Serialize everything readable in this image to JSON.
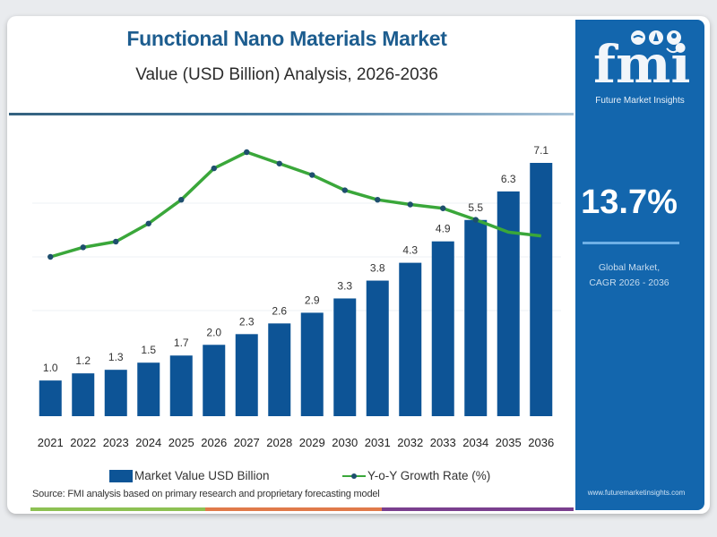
{
  "header": {
    "title": "Functional Nano Materials Market",
    "subtitle": "Value (USD Billion) Analysis, 2026-2036"
  },
  "sidebar": {
    "logo_text": "fmi",
    "logo_subtitle": "Future Market Insights",
    "cagr_value": "13.7%",
    "cagr_label_line1": "Global Market,",
    "cagr_label_line2": "CAGR 2026 - 2036",
    "website": "www.futuremarketinsights.com"
  },
  "legend": {
    "bar_label": "Market Value USD Billion",
    "line_label": "Y-o-Y Growth Rate (%)"
  },
  "source": "Source: FMI analysis based on primary research and proprietary forecasting model",
  "colors": {
    "brand_blue": "#1366ad",
    "bar": "#0d5496",
    "line": "#3aa73a",
    "marker": "#1e4f6e",
    "title": "#1d5d8f",
    "footer_segments": [
      "#8dc153",
      "#e07a4a",
      "#7a3f8e"
    ]
  },
  "chart_data": {
    "type": "bar",
    "title": "Functional Nano Materials Market",
    "subtitle": "Value (USD Billion) Analysis, 2026-2036",
    "xlabel": "",
    "ylabel": "",
    "categories": [
      "2021",
      "2022",
      "2023",
      "2024",
      "2025",
      "2026",
      "2027",
      "2028",
      "2029",
      "2030",
      "2031",
      "2032",
      "2033",
      "2034",
      "2035",
      "2036"
    ],
    "series": [
      {
        "name": "Market Value USD Billion",
        "type": "bar",
        "values": [
          1.0,
          1.2,
          1.3,
          1.5,
          1.7,
          2.0,
          2.3,
          2.6,
          2.9,
          3.3,
          3.8,
          4.3,
          4.9,
          5.5,
          6.3,
          7.1
        ],
        "labels": [
          "1.0",
          "1.2",
          "1.3",
          "1.5",
          "1.7",
          "2.0",
          "2.3",
          "2.6",
          "2.9",
          "3.3",
          "3.8",
          "4.3",
          "4.9",
          "5.5",
          "6.3",
          "7.1"
        ]
      },
      {
        "name": "Y-o-Y Growth Rate (%)",
        "type": "line",
        "approximate": true,
        "values": [
          10.0,
          11.0,
          11.6,
          13.5,
          16.0,
          19.3,
          21.0,
          19.8,
          18.6,
          17.0,
          16.0,
          15.5,
          15.1,
          13.9,
          12.6,
          12.2
        ]
      }
    ],
    "ylim_bar": [
      0,
      7.8
    ],
    "ylim_line": [
      0,
      26
    ],
    "grid": true,
    "legend_position": "bottom"
  }
}
